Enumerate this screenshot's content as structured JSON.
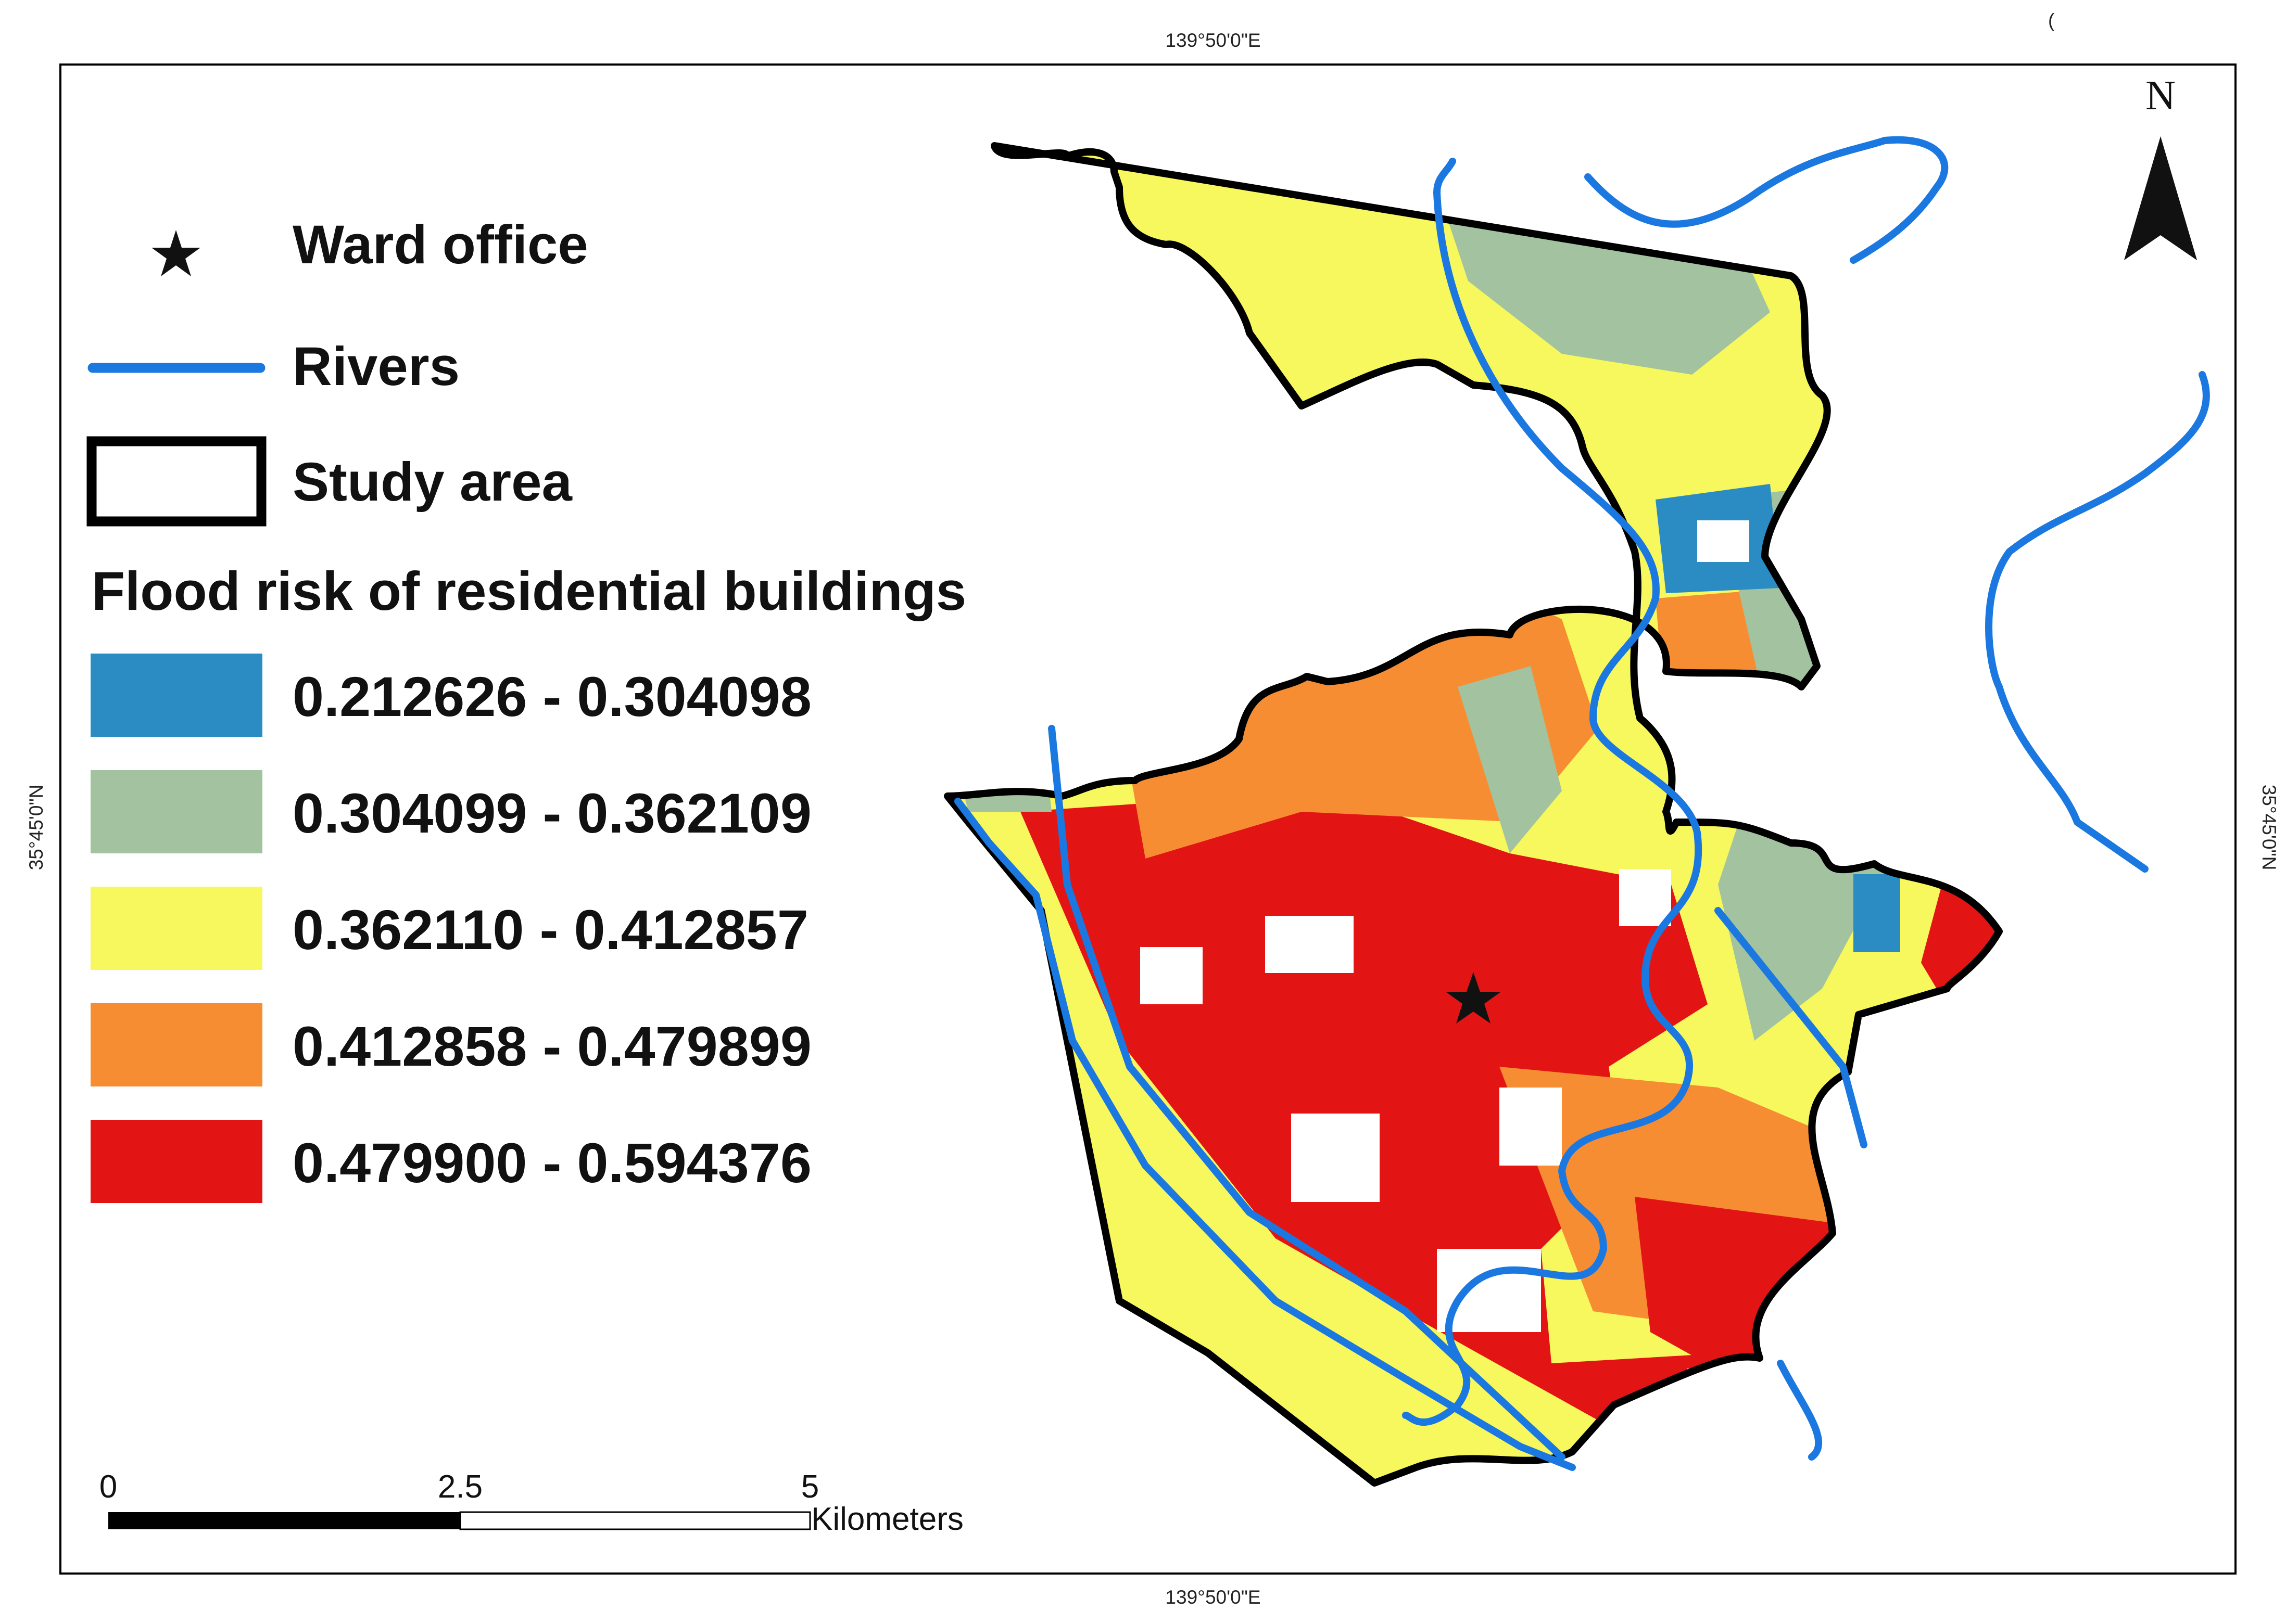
{
  "map": {
    "top_longitude_label": "139°50'0\"E",
    "bottom_longitude_label": "139°50'0\"E",
    "left_latitude_label": "35°45'0\"N",
    "right_latitude_label": "35°45'0\"N",
    "corner_mark": "(",
    "north_arrow": {
      "label": "N",
      "icon": "north-arrow-icon"
    },
    "ward_office_marker": {
      "icon": "star-icon"
    }
  },
  "legend": {
    "ward_office": {
      "label": "Ward office",
      "symbol": "star-icon"
    },
    "rivers": {
      "label": "Rivers",
      "color": "#1a78e0"
    },
    "study_area": {
      "label": "Study area",
      "color": "#000000"
    },
    "flood_risk": {
      "title": "Flood risk of residential buildings",
      "classes": [
        {
          "label": "0.212626 - 0.304098",
          "color": "#2b8cc4"
        },
        {
          "label": "0.304099 - 0.362109",
          "color": "#a3c3a0"
        },
        {
          "label": "0.362110 - 0.412857",
          "color": "#f7f75e"
        },
        {
          "label": "0.412858 - 0.479899",
          "color": "#f78d33"
        },
        {
          "label": "0.479900 - 0.594376",
          "color": "#e31414"
        }
      ]
    }
  },
  "scale_bar": {
    "ticks": [
      "0",
      "2.5",
      "5"
    ],
    "unit": "Kilometers"
  }
}
